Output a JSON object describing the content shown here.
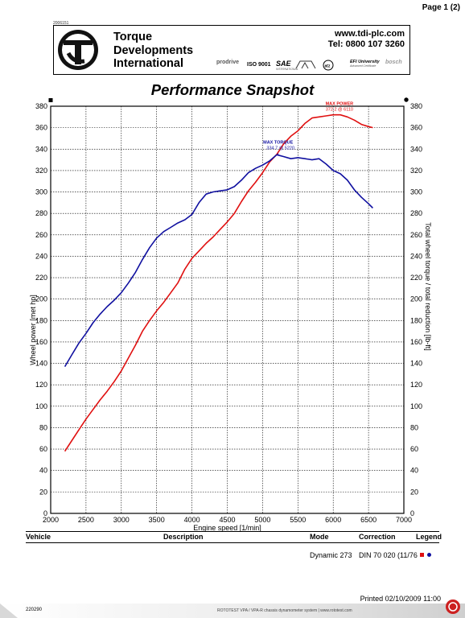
{
  "page": {
    "page_number": "Page 1 (2)",
    "small_id": "2006151"
  },
  "header": {
    "company_lines": [
      "Torque",
      "Developments",
      "International"
    ],
    "url": "www.tdi-plc.com",
    "tel": "Tel: 0800 107 3260",
    "certs": [
      {
        "name": "prodrive",
        "sub": ""
      },
      {
        "name": "ISO 9001",
        "sub": ""
      },
      {
        "name": "SAE",
        "sub": "INTERNATIONAL"
      },
      {
        "name": "",
        "sub": ""
      },
      {
        "name": "",
        "sub": ""
      },
      {
        "name": "EFI University",
        "sub": "Advanced Certificate"
      },
      {
        "name": "bosch",
        "sub": ""
      }
    ],
    "colors": {
      "logo_fill": "#111111",
      "cert_red": "#cc0000"
    }
  },
  "chart_data": {
    "type": "line",
    "title": "Performance Snapshot",
    "xlabel": "Engine speed [1/min]",
    "ylabel_left": "Wheel power [met hp]",
    "ylabel_right": "Total wheel torque / total reduction [lb-ft]",
    "xlim": [
      2000,
      7000
    ],
    "ylim": [
      0,
      380
    ],
    "x_ticks": [
      2000,
      2500,
      3000,
      3500,
      4000,
      4500,
      5000,
      5500,
      6000,
      6500,
      7000
    ],
    "y_ticks": [
      0,
      20,
      40,
      60,
      80,
      100,
      120,
      140,
      160,
      180,
      200,
      220,
      240,
      260,
      280,
      300,
      320,
      340,
      360,
      380
    ],
    "grid": true,
    "series": [
      {
        "color": "#e01010",
        "x": [
          2200,
          2300,
          2400,
          2500,
          2600,
          2700,
          2800,
          2900,
          3000,
          3100,
          3200,
          3300,
          3400,
          3500,
          3600,
          3700,
          3800,
          3900,
          4000,
          4100,
          4200,
          4300,
          4400,
          4500,
          4600,
          4700,
          4800,
          4900,
          5000,
          5100,
          5200,
          5300,
          5400,
          5500,
          5600,
          5700,
          5800,
          5900,
          6000,
          6100,
          6200,
          6300,
          6400,
          6500,
          6560
        ],
        "values": [
          58,
          68,
          78,
          88,
          97,
          106,
          114,
          123,
          133,
          145,
          157,
          170,
          180,
          189,
          197,
          206,
          215,
          228,
          238,
          245,
          252,
          258,
          265,
          272,
          280,
          291,
          301,
          309,
          318,
          328,
          335,
          345,
          352,
          357,
          364,
          369,
          370,
          371,
          372,
          372,
          370,
          367,
          363,
          361,
          360
        ]
      },
      {
        "color": "#1010a0",
        "x": [
          2200,
          2300,
          2400,
          2500,
          2600,
          2700,
          2800,
          2900,
          3000,
          3100,
          3200,
          3300,
          3400,
          3500,
          3600,
          3700,
          3800,
          3900,
          4000,
          4100,
          4200,
          4300,
          4400,
          4500,
          4600,
          4700,
          4800,
          4900,
          5000,
          5100,
          5200,
          5300,
          5400,
          5500,
          5600,
          5700,
          5800,
          5900,
          6000,
          6100,
          6200,
          6300,
          6400,
          6500,
          6560
        ],
        "values": [
          137,
          148,
          159,
          168,
          178,
          186,
          193,
          199,
          206,
          215,
          225,
          237,
          248,
          257,
          263,
          267,
          271,
          274,
          279,
          290,
          298,
          300,
          301,
          302,
          305,
          311,
          318,
          322,
          325,
          329,
          334.7,
          333,
          331,
          332,
          331,
          330,
          331,
          326,
          320,
          317,
          311,
          302,
          295,
          289,
          285
        ]
      }
    ],
    "annotations": [
      {
        "text": "MAX POWER",
        "value": "372.2 @ 6110",
        "color": "#e01010"
      },
      {
        "text": "MAX TORQUE",
        "value": "334.7 @ 5220",
        "color": "#1010a0"
      }
    ]
  },
  "table": {
    "headers": {
      "vehicle": "Vehicle",
      "description": "Description",
      "mode": "Mode",
      "correction": "Correction",
      "legend": "Legend"
    },
    "row": {
      "vehicle": "",
      "description": "",
      "mode": "Dynamic 273",
      "correction": "DIN 70 020 (11/76"
    }
  },
  "footer": {
    "printed": "Printed 02/10/2009 11:00",
    "doc_id": "220290",
    "rototest": "ROTOTEST VPA / VPA-R chassis dynamometer system | www.rototest.com"
  }
}
